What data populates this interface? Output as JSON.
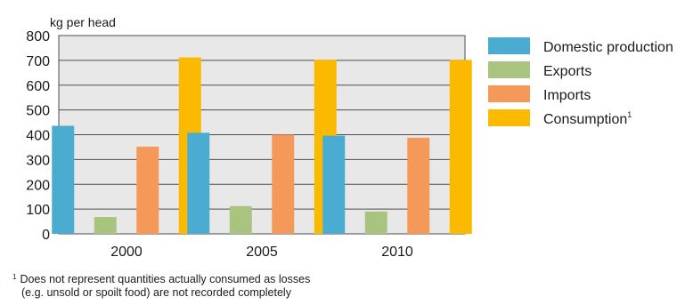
{
  "chart_data": {
    "type": "bar",
    "ylabel": "kg per head",
    "ylim": [
      0,
      800
    ],
    "yticks": [
      "0",
      "100",
      "200",
      "300",
      "400",
      "500",
      "600",
      "700",
      "800"
    ],
    "grid": true,
    "legend_position": "right",
    "categories": [
      "2000",
      "2005",
      "2010"
    ],
    "series": [
      {
        "name": "Domestic production",
        "color": "#4bacd2",
        "values": [
          436,
          408,
          396
        ]
      },
      {
        "name": "Exports",
        "color": "#a9c47f",
        "values": [
          68,
          112,
          90
        ]
      },
      {
        "name": "Imports",
        "color": "#f4995a",
        "values": [
          352,
          400,
          388
        ]
      },
      {
        "name": "Consumption",
        "superscript": "1",
        "color": "#fbb900",
        "values": [
          712,
          702,
          702
        ]
      }
    ]
  },
  "footnote": {
    "marker": "1",
    "line1": "Does not represent quantities actually consumed as losses",
    "line2": "(e.g. unsold or spoilt food) are not recorded completely"
  }
}
